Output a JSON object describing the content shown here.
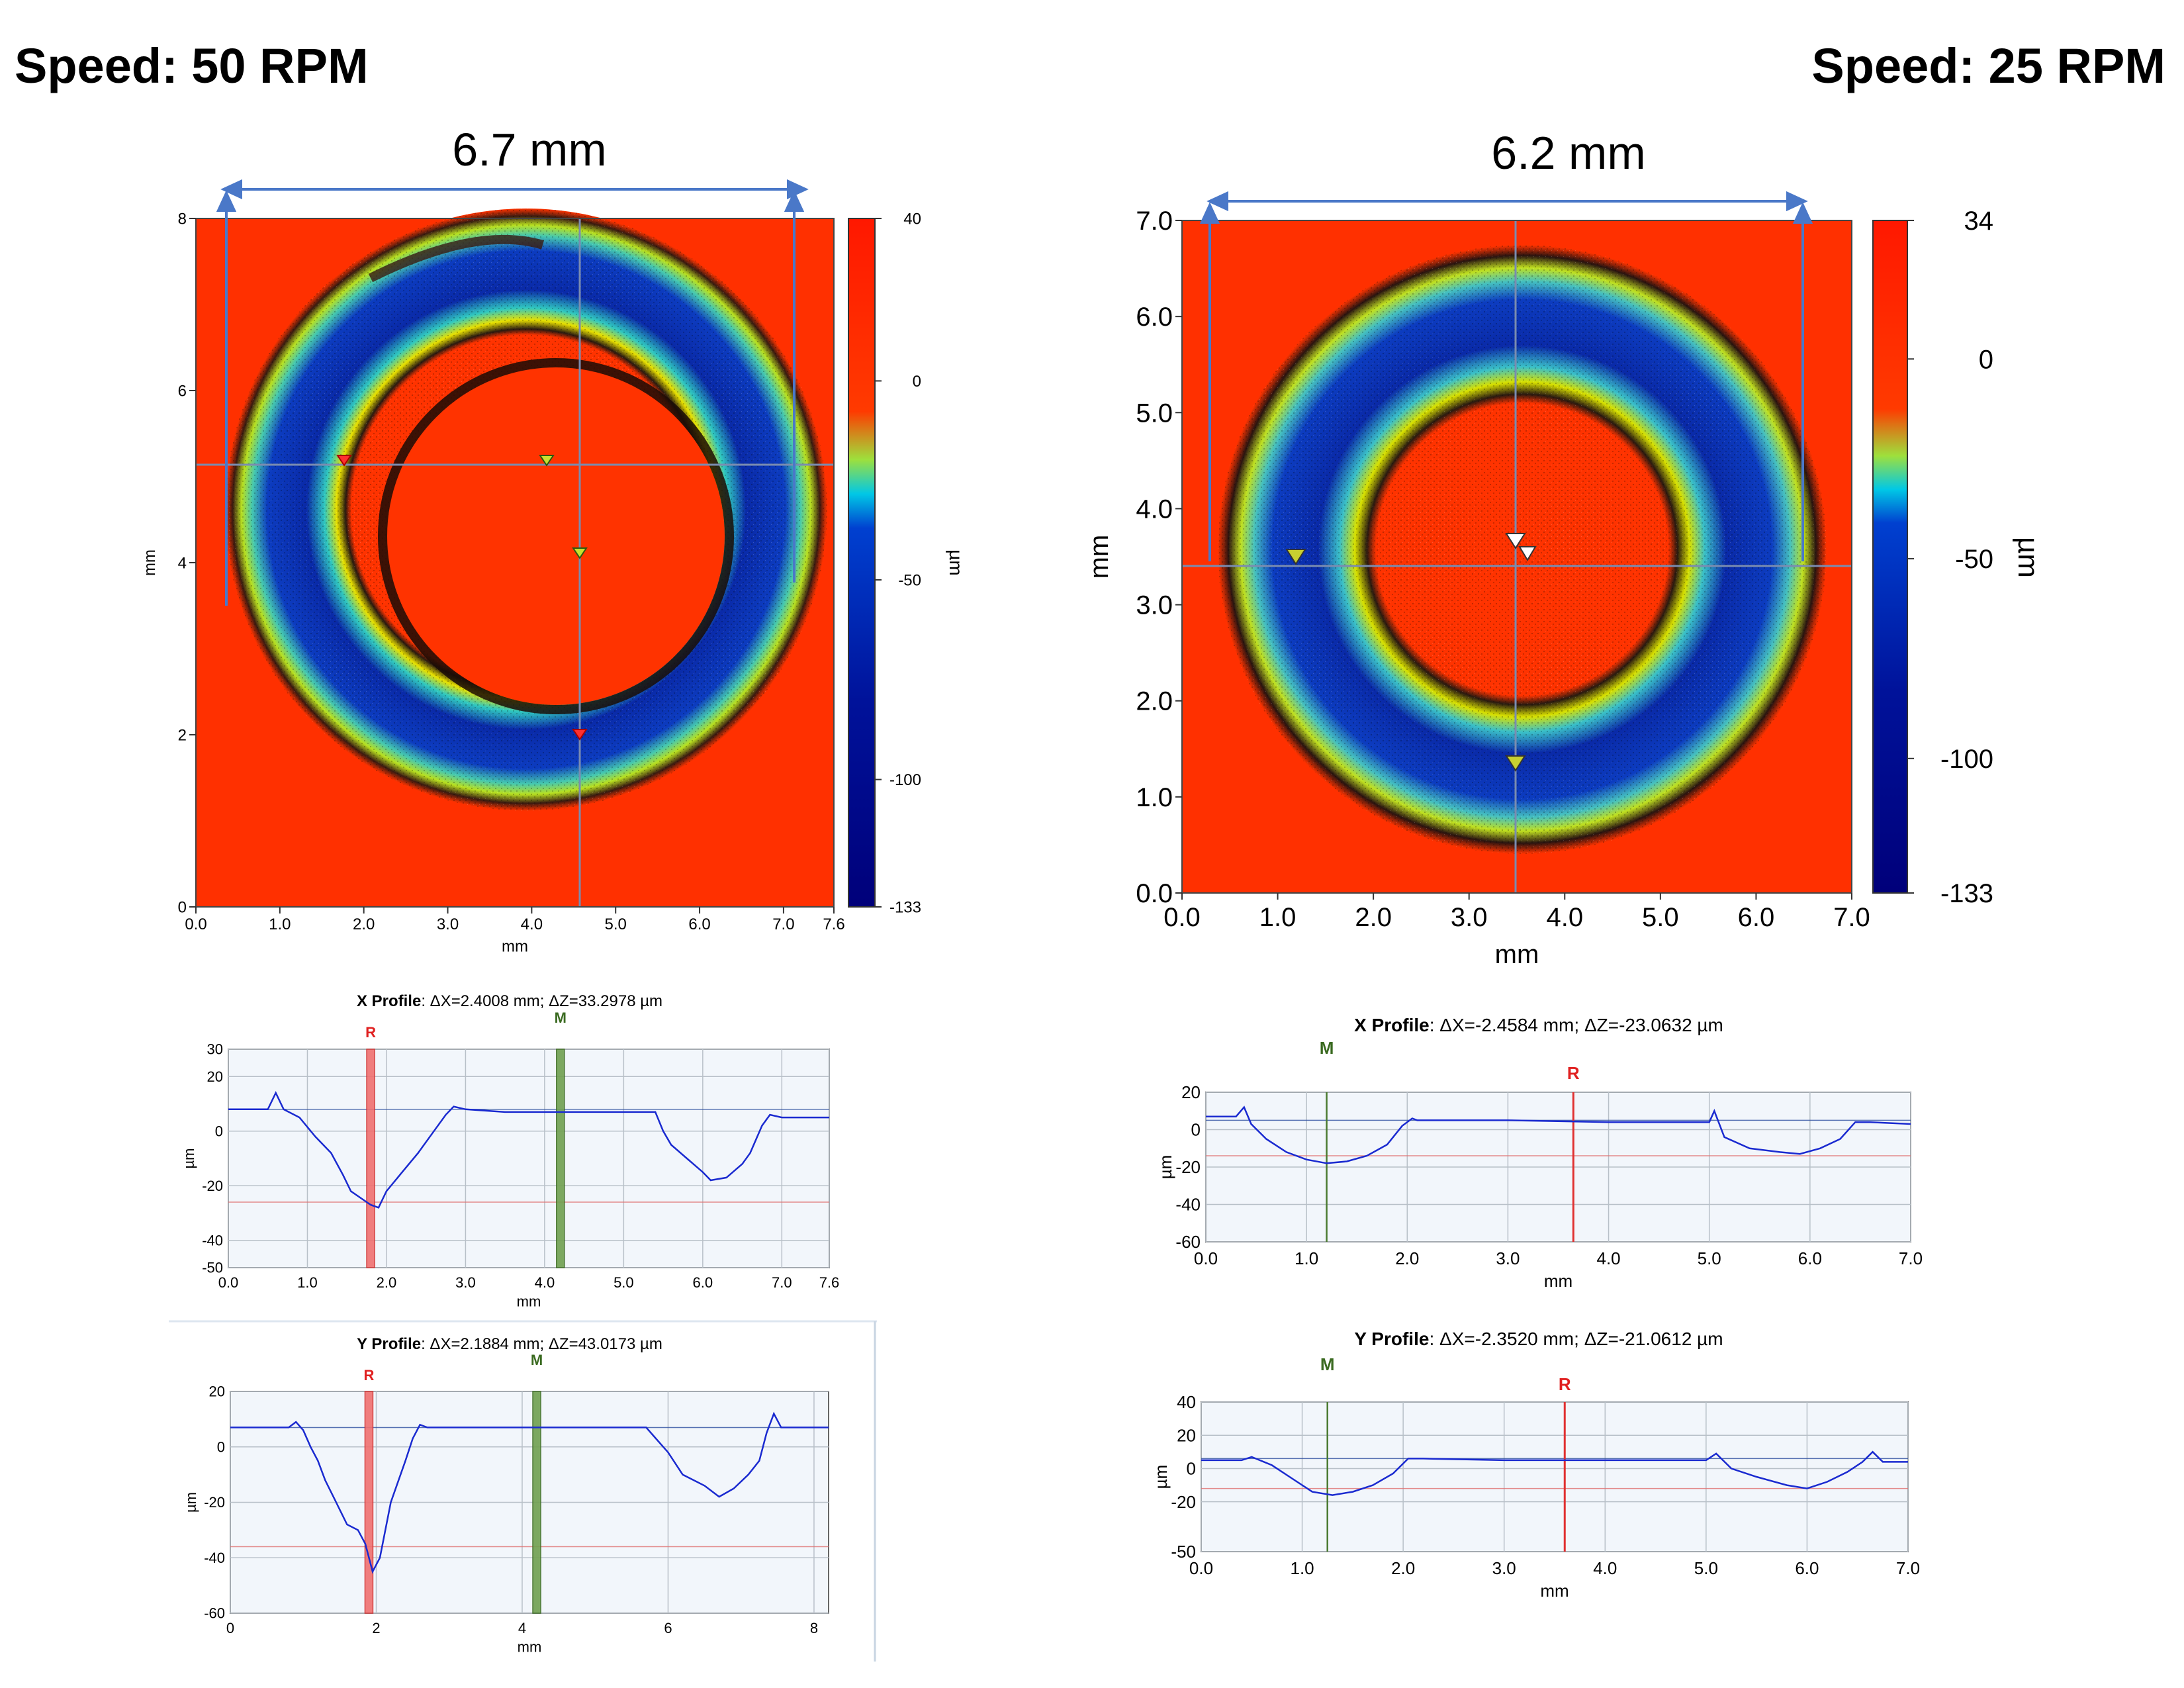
{
  "panels": [
    {
      "speed_label": "Speed: 50 RPM",
      "width_label": "6.7 mm",
      "map": {
        "x_ticks": [
          "0.0",
          "1.0",
          "2.0",
          "3.0",
          "4.0",
          "5.0",
          "6.0",
          "7.0",
          "7.6"
        ],
        "y_ticks": [
          "0",
          "2",
          "4",
          "6",
          "8"
        ],
        "x_label": "mm",
        "y_label": "mm",
        "colorbar_ticks": [
          "40",
          "0",
          "-50",
          "-100",
          "-133"
        ],
        "colorbar_unit": "µm"
      },
      "x_profile": {
        "title_bold": "X Profile",
        "title_rest": ": ΔX=2.4008 mm; ΔZ=33.2978 µm",
        "marker_r": "R",
        "marker_m": "M",
        "y_ticks": [
          "30",
          "20",
          "0",
          "-20",
          "-40",
          "-50"
        ],
        "x_ticks": [
          "0.0",
          "1.0",
          "2.0",
          "3.0",
          "4.0",
          "5.0",
          "6.0",
          "7.0",
          "7.6"
        ],
        "x_label": "mm",
        "y_label": "µm"
      },
      "y_profile": {
        "title_bold": "Y Profile",
        "title_rest": ": ΔX=2.1884 mm; ΔZ=43.0173 µm",
        "marker_r": "R",
        "marker_m": "M",
        "y_ticks": [
          "20",
          "0",
          "-20",
          "-40",
          "-60"
        ],
        "x_ticks": [
          "0",
          "2",
          "4",
          "6",
          "8"
        ],
        "x_label": "mm",
        "y_label": "µm"
      }
    },
    {
      "speed_label": "Speed: 25 RPM",
      "width_label": "6.2 mm",
      "map": {
        "x_ticks": [
          "0.0",
          "1.0",
          "2.0",
          "3.0",
          "4.0",
          "5.0",
          "6.0",
          "7.0"
        ],
        "y_ticks": [
          "0.0",
          "1.0",
          "2.0",
          "3.0",
          "4.0",
          "5.0",
          "6.0",
          "7.0"
        ],
        "x_label": "mm",
        "y_label": "mm",
        "colorbar_ticks": [
          "34",
          "0",
          "-50",
          "-100",
          "-133"
        ],
        "colorbar_unit": "µm"
      },
      "x_profile": {
        "title_bold": "X Profile",
        "title_rest": ": ΔX=-2.4584 mm; ΔZ=-23.0632 µm",
        "marker_r": "R",
        "marker_m": "M",
        "y_ticks": [
          "20",
          "0",
          "-20",
          "-40",
          "-60"
        ],
        "x_ticks": [
          "0.0",
          "1.0",
          "2.0",
          "3.0",
          "4.0",
          "5.0",
          "6.0",
          "7.0"
        ],
        "x_label": "mm",
        "y_label": "µm"
      },
      "y_profile": {
        "title_bold": "Y Profile",
        "title_rest": ": ΔX=-2.3520 mm; ΔZ=-21.0612 µm",
        "marker_r": "R",
        "marker_m": "M",
        "y_ticks": [
          "40",
          "20",
          "0",
          "-20",
          "-50"
        ],
        "x_ticks": [
          "0.0",
          "1.0",
          "2.0",
          "3.0",
          "4.0",
          "5.0",
          "6.0",
          "7.0"
        ],
        "x_label": "mm",
        "y_label": "µm"
      }
    }
  ],
  "chart_data": [
    {
      "type": "heatmap",
      "name": "50 RPM surface map",
      "xlim": [
        0,
        7.6
      ],
      "ylim": [
        0,
        8
      ],
      "zlim": [
        -133,
        40
      ],
      "colorscale": [
        "#00007a",
        "#0033cc",
        "#00b4e0",
        "#6fdc3c",
        "#ffe000",
        "#ff2a00"
      ],
      "ring": {
        "center_mm": [
          4.0,
          4.15
        ],
        "inner_radius_mm": 2.15,
        "outer_radius_mm": 3.55
      }
    },
    {
      "type": "heatmap",
      "name": "25 RPM surface map",
      "xlim": [
        0,
        7.0
      ],
      "ylim": [
        0,
        7.0
      ],
      "zlim": [
        -133,
        34
      ],
      "colorscale": [
        "#00007a",
        "#0033cc",
        "#00b4e0",
        "#6fdc3c",
        "#ffe000",
        "#ff2a00"
      ],
      "ring": {
        "center_mm": [
          3.55,
          3.65
        ],
        "inner_radius_mm": 1.6,
        "outer_radius_mm": 3.15
      }
    },
    {
      "type": "line",
      "name": "50 RPM X profile",
      "xlim": [
        0,
        7.6
      ],
      "ylim": [
        -50,
        30
      ],
      "cursor_r_mm": 1.8,
      "cursor_m_mm": 4.2,
      "ref_levels": [
        8,
        -26
      ],
      "series": [
        {
          "values": [
            [
              0,
              8
            ],
            [
              0.5,
              8
            ],
            [
              0.6,
              14
            ],
            [
              0.7,
              8
            ],
            [
              0.9,
              5
            ],
            [
              1.1,
              -2
            ],
            [
              1.3,
              -8
            ],
            [
              1.45,
              -16
            ],
            [
              1.55,
              -22
            ],
            [
              1.7,
              -25
            ],
            [
              1.8,
              -27
            ],
            [
              1.9,
              -28
            ],
            [
              2.0,
              -22
            ],
            [
              2.2,
              -15
            ],
            [
              2.4,
              -8
            ],
            [
              2.6,
              0
            ],
            [
              2.75,
              6
            ],
            [
              2.85,
              9
            ],
            [
              3.0,
              8
            ],
            [
              3.5,
              7
            ],
            [
              4.0,
              7
            ],
            [
              4.5,
              7
            ],
            [
              5.0,
              7
            ],
            [
              5.4,
              7
            ],
            [
              5.5,
              0
            ],
            [
              5.6,
              -5
            ],
            [
              5.8,
              -10
            ],
            [
              6.0,
              -15
            ],
            [
              6.1,
              -18
            ],
            [
              6.3,
              -17
            ],
            [
              6.5,
              -12
            ],
            [
              6.6,
              -8
            ],
            [
              6.75,
              2
            ],
            [
              6.85,
              6
            ],
            [
              7.0,
              5
            ],
            [
              7.6,
              5
            ]
          ]
        }
      ]
    },
    {
      "type": "line",
      "name": "50 RPM Y profile",
      "xlim": [
        0,
        8.2
      ],
      "ylim": [
        -60,
        20
      ],
      "cursor_r_mm": 1.9,
      "cursor_m_mm": 4.2,
      "ref_levels": [
        7,
        -36
      ],
      "series": [
        {
          "values": [
            [
              0,
              7
            ],
            [
              0.8,
              7
            ],
            [
              0.9,
              9
            ],
            [
              1.0,
              6
            ],
            [
              1.1,
              0
            ],
            [
              1.2,
              -5
            ],
            [
              1.3,
              -12
            ],
            [
              1.45,
              -20
            ],
            [
              1.6,
              -28
            ],
            [
              1.75,
              -30
            ],
            [
              1.85,
              -35
            ],
            [
              1.95,
              -45
            ],
            [
              2.05,
              -40
            ],
            [
              2.2,
              -20
            ],
            [
              2.4,
              -5
            ],
            [
              2.5,
              3
            ],
            [
              2.6,
              8
            ],
            [
              2.7,
              7
            ],
            [
              3.0,
              7
            ],
            [
              4.0,
              7
            ],
            [
              5.0,
              7
            ],
            [
              5.7,
              7
            ],
            [
              5.8,
              4
            ],
            [
              6.0,
              -2
            ],
            [
              6.2,
              -10
            ],
            [
              6.5,
              -14
            ],
            [
              6.7,
              -18
            ],
            [
              6.9,
              -15
            ],
            [
              7.1,
              -10
            ],
            [
              7.25,
              -5
            ],
            [
              7.35,
              5
            ],
            [
              7.45,
              12
            ],
            [
              7.55,
              7
            ],
            [
              8.2,
              7
            ]
          ]
        }
      ]
    },
    {
      "type": "line",
      "name": "25 RPM X profile",
      "xlim": [
        0,
        7.0
      ],
      "ylim": [
        -60,
        20
      ],
      "cursor_r_mm": 3.65,
      "cursor_m_mm": 1.2,
      "ref_levels": [
        5,
        -14
      ],
      "series": [
        {
          "values": [
            [
              0,
              7
            ],
            [
              0.3,
              7
            ],
            [
              0.38,
              12
            ],
            [
              0.45,
              3
            ],
            [
              0.6,
              -5
            ],
            [
              0.8,
              -12
            ],
            [
              1.0,
              -16
            ],
            [
              1.2,
              -18
            ],
            [
              1.4,
              -17
            ],
            [
              1.6,
              -14
            ],
            [
              1.8,
              -8
            ],
            [
              1.95,
              2
            ],
            [
              2.05,
              6
            ],
            [
              2.1,
              5
            ],
            [
              3.0,
              5
            ],
            [
              4.0,
              4
            ],
            [
              5.0,
              4
            ],
            [
              5.05,
              10
            ],
            [
              5.15,
              -4
            ],
            [
              5.4,
              -10
            ],
            [
              5.7,
              -12
            ],
            [
              5.9,
              -13
            ],
            [
              6.1,
              -10
            ],
            [
              6.3,
              -5
            ],
            [
              6.45,
              4
            ],
            [
              6.6,
              4
            ],
            [
              7.0,
              3
            ]
          ]
        }
      ]
    },
    {
      "type": "line",
      "name": "25 RPM Y profile",
      "xlim": [
        0,
        7.0
      ],
      "ylim": [
        -50,
        40
      ],
      "cursor_r_mm": 3.6,
      "cursor_m_mm": 1.25,
      "ref_levels": [
        6,
        -12
      ],
      "series": [
        {
          "values": [
            [
              0,
              5
            ],
            [
              0.4,
              5
            ],
            [
              0.5,
              7
            ],
            [
              0.7,
              2
            ],
            [
              0.9,
              -6
            ],
            [
              1.1,
              -14
            ],
            [
              1.3,
              -16
            ],
            [
              1.5,
              -14
            ],
            [
              1.7,
              -10
            ],
            [
              1.9,
              -3
            ],
            [
              2.05,
              6
            ],
            [
              2.2,
              6
            ],
            [
              3.0,
              5
            ],
            [
              4.0,
              5
            ],
            [
              5.0,
              5
            ],
            [
              5.1,
              9
            ],
            [
              5.25,
              0
            ],
            [
              5.5,
              -5
            ],
            [
              5.8,
              -10
            ],
            [
              6.0,
              -12
            ],
            [
              6.2,
              -8
            ],
            [
              6.4,
              -2
            ],
            [
              6.55,
              4
            ],
            [
              6.65,
              10
            ],
            [
              6.75,
              4
            ],
            [
              7.0,
              4
            ]
          ]
        }
      ]
    }
  ]
}
